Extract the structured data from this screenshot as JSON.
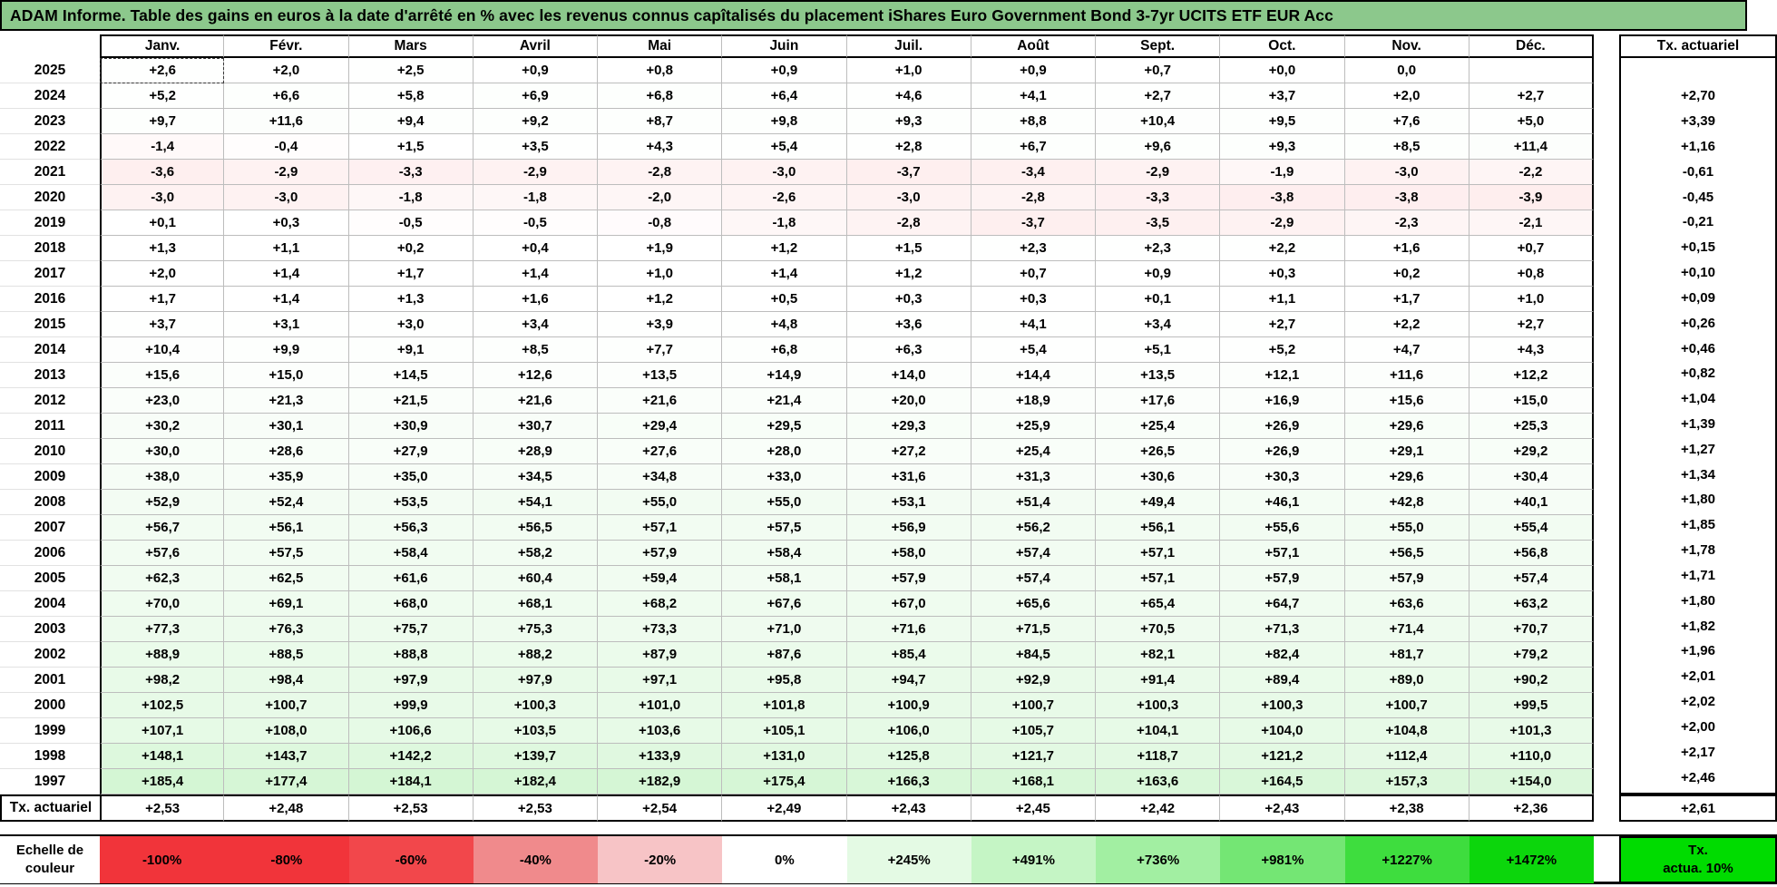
{
  "title": "ADAM Informe. Table des gains en euros à la date d'arrêté en % avec les revenus connus capîtalisés du placement iShares Euro Government Bond 3-7yr UCITS ETF EUR Acc",
  "table": {
    "month_headers": [
      "Janv.",
      "Févr.",
      "Mars",
      "Avril",
      "Mai",
      "Juin",
      "Juil.",
      "Août",
      "Sept.",
      "Oct.",
      "Nov.",
      "Déc."
    ],
    "tx_header": "Tx. actuariel",
    "tx_row_label": "Tx. actuariel",
    "rows": [
      {
        "year": "2025",
        "values": [
          "+2,6",
          "+2,0",
          "+2,5",
          "+0,9",
          "+0,8",
          "+0,9",
          "+1,0",
          "+0,9",
          "+0,7",
          "+0,0",
          "0,0",
          ""
        ],
        "tx": ""
      },
      {
        "year": "2024",
        "values": [
          "+5,2",
          "+6,6",
          "+5,8",
          "+6,9",
          "+6,8",
          "+6,4",
          "+4,6",
          "+4,1",
          "+2,7",
          "+3,7",
          "+2,0",
          "+2,7"
        ],
        "tx": "+2,70"
      },
      {
        "year": "2023",
        "values": [
          "+9,7",
          "+11,6",
          "+9,4",
          "+9,2",
          "+8,7",
          "+9,8",
          "+9,3",
          "+8,8",
          "+10,4",
          "+9,5",
          "+7,6",
          "+5,0"
        ],
        "tx": "+3,39"
      },
      {
        "year": "2022",
        "values": [
          "-1,4",
          "-0,4",
          "+1,5",
          "+3,5",
          "+4,3",
          "+5,4",
          "+2,8",
          "+6,7",
          "+9,6",
          "+9,3",
          "+8,5",
          "+11,4"
        ],
        "tx": "+1,16"
      },
      {
        "year": "2021",
        "values": [
          "-3,6",
          "-2,9",
          "-3,3",
          "-2,9",
          "-2,8",
          "-3,0",
          "-3,7",
          "-3,4",
          "-2,9",
          "-1,9",
          "-3,0",
          "-2,2"
        ],
        "tx": "-0,61"
      },
      {
        "year": "2020",
        "values": [
          "-3,0",
          "-3,0",
          "-1,8",
          "-1,8",
          "-2,0",
          "-2,6",
          "-3,0",
          "-2,8",
          "-3,3",
          "-3,8",
          "-3,8",
          "-3,9"
        ],
        "tx": "-0,45"
      },
      {
        "year": "2019",
        "values": [
          "+0,1",
          "+0,3",
          "-0,5",
          "-0,5",
          "-0,8",
          "-1,8",
          "-2,8",
          "-3,7",
          "-3,5",
          "-2,9",
          "-2,3",
          "-2,1"
        ],
        "tx": "-0,21"
      },
      {
        "year": "2018",
        "values": [
          "+1,3",
          "+1,1",
          "+0,2",
          "+0,4",
          "+1,9",
          "+1,2",
          "+1,5",
          "+2,3",
          "+2,3",
          "+2,2",
          "+1,6",
          "+0,7"
        ],
        "tx": "+0,15"
      },
      {
        "year": "2017",
        "values": [
          "+2,0",
          "+1,4",
          "+1,7",
          "+1,4",
          "+1,0",
          "+1,4",
          "+1,2",
          "+0,7",
          "+0,9",
          "+0,3",
          "+0,2",
          "+0,8"
        ],
        "tx": "+0,10"
      },
      {
        "year": "2016",
        "values": [
          "+1,7",
          "+1,4",
          "+1,3",
          "+1,6",
          "+1,2",
          "+0,5",
          "+0,3",
          "+0,3",
          "+0,1",
          "+1,1",
          "+1,7",
          "+1,0"
        ],
        "tx": "+0,09"
      },
      {
        "year": "2015",
        "values": [
          "+3,7",
          "+3,1",
          "+3,0",
          "+3,4",
          "+3,9",
          "+4,8",
          "+3,6",
          "+4,1",
          "+3,4",
          "+2,7",
          "+2,2",
          "+2,7"
        ],
        "tx": "+0,26"
      },
      {
        "year": "2014",
        "values": [
          "+10,4",
          "+9,9",
          "+9,1",
          "+8,5",
          "+7,7",
          "+6,8",
          "+6,3",
          "+5,4",
          "+5,1",
          "+5,2",
          "+4,7",
          "+4,3"
        ],
        "tx": "+0,46"
      },
      {
        "year": "2013",
        "values": [
          "+15,6",
          "+15,0",
          "+14,5",
          "+12,6",
          "+13,5",
          "+14,9",
          "+14,0",
          "+14,4",
          "+13,5",
          "+12,1",
          "+11,6",
          "+12,2"
        ],
        "tx": "+0,82"
      },
      {
        "year": "2012",
        "values": [
          "+23,0",
          "+21,3",
          "+21,5",
          "+21,6",
          "+21,6",
          "+21,4",
          "+20,0",
          "+18,9",
          "+17,6",
          "+16,9",
          "+15,6",
          "+15,0"
        ],
        "tx": "+1,04"
      },
      {
        "year": "2011",
        "values": [
          "+30,2",
          "+30,1",
          "+30,9",
          "+30,7",
          "+29,4",
          "+29,5",
          "+29,3",
          "+25,9",
          "+25,4",
          "+26,9",
          "+29,6",
          "+25,3"
        ],
        "tx": "+1,39"
      },
      {
        "year": "2010",
        "values": [
          "+30,0",
          "+28,6",
          "+27,9",
          "+28,9",
          "+27,6",
          "+28,0",
          "+27,2",
          "+25,4",
          "+26,5",
          "+26,9",
          "+29,1",
          "+29,2"
        ],
        "tx": "+1,27"
      },
      {
        "year": "2009",
        "values": [
          "+38,0",
          "+35,9",
          "+35,0",
          "+34,5",
          "+34,8",
          "+33,0",
          "+31,6",
          "+31,3",
          "+30,6",
          "+30,3",
          "+29,6",
          "+30,4"
        ],
        "tx": "+1,34"
      },
      {
        "year": "2008",
        "values": [
          "+52,9",
          "+52,4",
          "+53,5",
          "+54,1",
          "+55,0",
          "+55,0",
          "+53,1",
          "+51,4",
          "+49,4",
          "+46,1",
          "+42,8",
          "+40,1"
        ],
        "tx": "+1,80"
      },
      {
        "year": "2007",
        "values": [
          "+56,7",
          "+56,1",
          "+56,3",
          "+56,5",
          "+57,1",
          "+57,5",
          "+56,9",
          "+56,2",
          "+56,1",
          "+55,6",
          "+55,0",
          "+55,4"
        ],
        "tx": "+1,85"
      },
      {
        "year": "2006",
        "values": [
          "+57,6",
          "+57,5",
          "+58,4",
          "+58,2",
          "+57,9",
          "+58,4",
          "+58,0",
          "+57,4",
          "+57,1",
          "+57,1",
          "+56,5",
          "+56,8"
        ],
        "tx": "+1,78"
      },
      {
        "year": "2005",
        "values": [
          "+62,3",
          "+62,5",
          "+61,6",
          "+60,4",
          "+59,4",
          "+58,1",
          "+57,9",
          "+57,4",
          "+57,1",
          "+57,9",
          "+57,9",
          "+57,4"
        ],
        "tx": "+1,71"
      },
      {
        "year": "2004",
        "values": [
          "+70,0",
          "+69,1",
          "+68,0",
          "+68,1",
          "+68,2",
          "+67,6",
          "+67,0",
          "+65,6",
          "+65,4",
          "+64,7",
          "+63,6",
          "+63,2"
        ],
        "tx": "+1,80"
      },
      {
        "year": "2003",
        "values": [
          "+77,3",
          "+76,3",
          "+75,7",
          "+75,3",
          "+73,3",
          "+71,0",
          "+71,6",
          "+71,5",
          "+70,5",
          "+71,3",
          "+71,4",
          "+70,7"
        ],
        "tx": "+1,82"
      },
      {
        "year": "2002",
        "values": [
          "+88,9",
          "+88,5",
          "+88,8",
          "+88,2",
          "+87,9",
          "+87,6",
          "+85,4",
          "+84,5",
          "+82,1",
          "+82,4",
          "+81,7",
          "+79,2"
        ],
        "tx": "+1,96"
      },
      {
        "year": "2001",
        "values": [
          "+98,2",
          "+98,4",
          "+97,9",
          "+97,9",
          "+97,1",
          "+95,8",
          "+94,7",
          "+92,9",
          "+91,4",
          "+89,4",
          "+89,0",
          "+90,2"
        ],
        "tx": "+2,01"
      },
      {
        "year": "2000",
        "values": [
          "+102,5",
          "+100,7",
          "+99,9",
          "+100,3",
          "+101,0",
          "+101,8",
          "+100,9",
          "+100,7",
          "+100,3",
          "+100,3",
          "+100,7",
          "+99,5"
        ],
        "tx": "+2,02"
      },
      {
        "year": "1999",
        "values": [
          "+107,1",
          "+108,0",
          "+106,6",
          "+103,5",
          "+103,6",
          "+105,1",
          "+106,0",
          "+105,7",
          "+104,1",
          "+104,0",
          "+104,8",
          "+101,3"
        ],
        "tx": "+2,00"
      },
      {
        "year": "1998",
        "values": [
          "+148,1",
          "+143,7",
          "+142,2",
          "+139,7",
          "+133,9",
          "+131,0",
          "+125,8",
          "+121,7",
          "+118,7",
          "+121,2",
          "+112,4",
          "+110,0"
        ],
        "tx": "+2,17"
      },
      {
        "year": "1997",
        "values": [
          "+185,4",
          "+177,4",
          "+184,1",
          "+182,4",
          "+182,9",
          "+175,4",
          "+166,3",
          "+168,1",
          "+163,6",
          "+164,5",
          "+157,3",
          "+154,0"
        ],
        "tx": "+2,46"
      }
    ],
    "tx_row": {
      "values": [
        "+2,53",
        "+2,48",
        "+2,53",
        "+2,53",
        "+2,54",
        "+2,49",
        "+2,43",
        "+2,45",
        "+2,42",
        "+2,43",
        "+2,38",
        "+2,36"
      ],
      "tx": "+2,61"
    },
    "selected_cell": {
      "year": "2025",
      "month_index": 0
    }
  },
  "legend": {
    "label_line1": "Echelle de",
    "label_line2": "couleur",
    "cells": [
      {
        "label": "-100%",
        "color": "#F1343A"
      },
      {
        "label": "-80%",
        "color": "#F1343A"
      },
      {
        "label": "-60%",
        "color": "#F2474B"
      },
      {
        "label": "-40%",
        "color": "#F08A8C"
      },
      {
        "label": "-20%",
        "color": "#F7C4C6"
      },
      {
        "label": "0%",
        "color": "#FFFFFF"
      },
      {
        "label": "+245%",
        "color": "#E4FAE4"
      },
      {
        "label": "+491%",
        "color": "#C5F5C5"
      },
      {
        "label": "+736%",
        "color": "#A2EFA2"
      },
      {
        "label": "+981%",
        "color": "#74E674"
      },
      {
        "label": "+1227%",
        "color": "#3EDD3E"
      },
      {
        "label": "+1472%",
        "color": "#0CD60C"
      }
    ],
    "tx_cell": {
      "line1": "Tx.",
      "line2": "actua. 10%",
      "color": "#00DC00"
    }
  },
  "colors": {
    "title_bg": "#8CC88C",
    "grid_line": "#BDBDBD",
    "outline": "#000000",
    "negative_base": "#F2383C",
    "positive_base": "#00C800"
  }
}
